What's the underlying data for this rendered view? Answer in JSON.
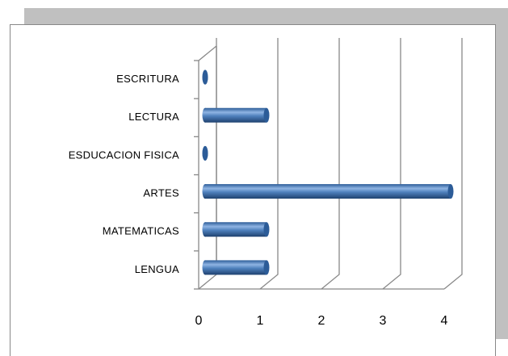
{
  "chart_data": {
    "type": "bar",
    "orientation": "horizontal",
    "categories": [
      "LENGUA",
      "MATEMATICAS",
      "ARTES",
      "ESDUCACION FISICA",
      "LECTURA",
      "ESCRITURA"
    ],
    "values": [
      1,
      1,
      4,
      0,
      1,
      0
    ],
    "color": "#4f81bd",
    "xlim": [
      0,
      4
    ],
    "xticks": [
      0,
      1,
      2,
      3,
      4
    ],
    "grid": true
  }
}
